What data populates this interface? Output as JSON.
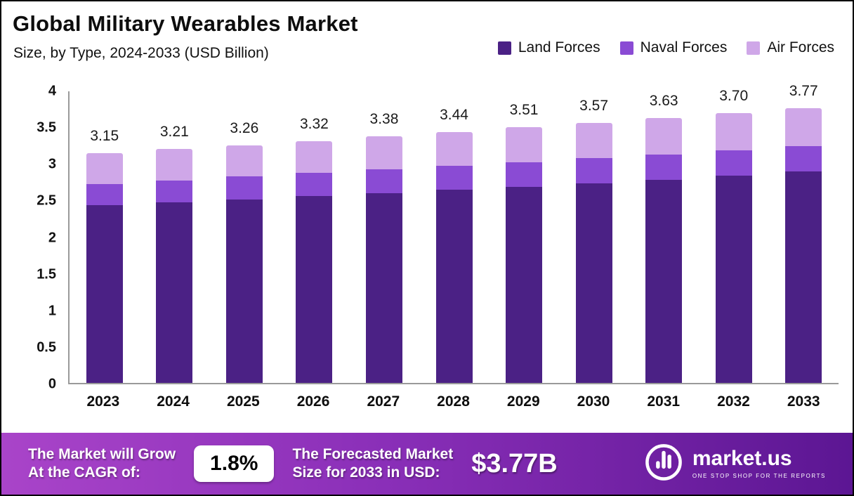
{
  "header": {
    "title": "Global Military Wearables Market",
    "subtitle": "Size, by Type, 2024-2033 (USD Billion)"
  },
  "legend": [
    {
      "label": "Land Forces",
      "color": "#4b2185"
    },
    {
      "label": "Naval Forces",
      "color": "#8a4bd4"
    },
    {
      "label": "Air Forces",
      "color": "#cfa7e8"
    }
  ],
  "chart_data": {
    "type": "bar",
    "stacked": true,
    "title": "Global Military Wearables Market Size, by Type, 2024-2033 (USD Billion)",
    "categories": [
      "2023",
      "2024",
      "2025",
      "2026",
      "2027",
      "2028",
      "2029",
      "2030",
      "2031",
      "2032",
      "2033"
    ],
    "series": [
      {
        "name": "Land Forces",
        "color": "#4b2185",
        "values": [
          2.44,
          2.48,
          2.52,
          2.56,
          2.6,
          2.65,
          2.69,
          2.74,
          2.79,
          2.84,
          2.9
        ]
      },
      {
        "name": "Naval Forces",
        "color": "#8a4bd4",
        "values": [
          0.29,
          0.3,
          0.31,
          0.32,
          0.33,
          0.33,
          0.34,
          0.34,
          0.34,
          0.35,
          0.35
        ]
      },
      {
        "name": "Air Forces",
        "color": "#cfa7e8",
        "values": [
          0.42,
          0.43,
          0.43,
          0.44,
          0.45,
          0.46,
          0.48,
          0.49,
          0.5,
          0.51,
          0.52
        ]
      }
    ],
    "totals": [
      3.15,
      3.21,
      3.26,
      3.32,
      3.38,
      3.44,
      3.51,
      3.57,
      3.63,
      3.7,
      3.77
    ],
    "total_labels": [
      "3.15",
      "3.21",
      "3.26",
      "3.32",
      "3.38",
      "3.44",
      "3.51",
      "3.57",
      "3.63",
      "3.70",
      "3.77"
    ],
    "xlabel": "",
    "ylabel": "",
    "ylim": [
      0,
      4
    ],
    "yticks": [
      0,
      0.5,
      1,
      1.5,
      2,
      2.5,
      3,
      3.5,
      4
    ],
    "ytick_labels": [
      "0",
      "0.5",
      "1",
      "1.5",
      "2",
      "2.5",
      "3",
      "3.5",
      "4"
    ],
    "grid": false,
    "legend_position": "top-right"
  },
  "footer": {
    "cagr_label_line1": "The Market will Grow",
    "cagr_label_line2": "At the CAGR of:",
    "cagr_value": "1.8%",
    "forecast_label_line1": "The Forecasted Market",
    "forecast_label_line2": "Size for 2033 in USD:",
    "forecast_value": "$3.77B",
    "brand_name": "market.us",
    "brand_tagline": "ONE STOP SHOP FOR THE REPORTS"
  }
}
